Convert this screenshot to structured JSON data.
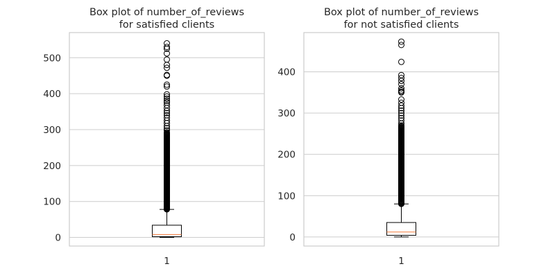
{
  "chart_data": [
    {
      "type": "box",
      "title": [
        "Box plot of number_of_reviews",
        "for satisfied clients"
      ],
      "xlabel": "",
      "ylabel": "",
      "categories": [
        "1"
      ],
      "ylim": [
        -24,
        570
      ],
      "yticks": [
        0,
        100,
        200,
        300,
        400,
        500
      ],
      "grid": true,
      "box": {
        "whisker_low": 0,
        "q1": 2,
        "median": 8,
        "q3": 34,
        "whisker_high": 78
      },
      "outliers_dense_range": [
        78,
        290
      ],
      "outliers": [
        292,
        298,
        304,
        310,
        318,
        325,
        333,
        340,
        346,
        352,
        360,
        368,
        375,
        380,
        386,
        392,
        398,
        420,
        425,
        450,
        452,
        472,
        480,
        495,
        512,
        525,
        530,
        540
      ]
    },
    {
      "type": "box",
      "title": [
        "Box plot of number_of_reviews",
        "for not satisfied clients"
      ],
      "xlabel": "",
      "ylabel": "",
      "categories": [
        "1"
      ],
      "ylim": [
        -22,
        495
      ],
      "yticks": [
        0,
        100,
        200,
        300,
        400
      ],
      "grid": true,
      "box": {
        "whisker_low": 0,
        "q1": 4,
        "median": 12,
        "q3": 35,
        "whisker_high": 80
      },
      "outliers_dense_range": [
        80,
        268
      ],
      "outliers": [
        270,
        275,
        282,
        288,
        294,
        300,
        306,
        312,
        318,
        325,
        333,
        350,
        352,
        355,
        360,
        370,
        378,
        385,
        392,
        424,
        465,
        473
      ]
    }
  ],
  "colors": {
    "median": "#f47a3a",
    "grid": "#cccccc",
    "frame": "#cccccc",
    "box": "#000000"
  }
}
